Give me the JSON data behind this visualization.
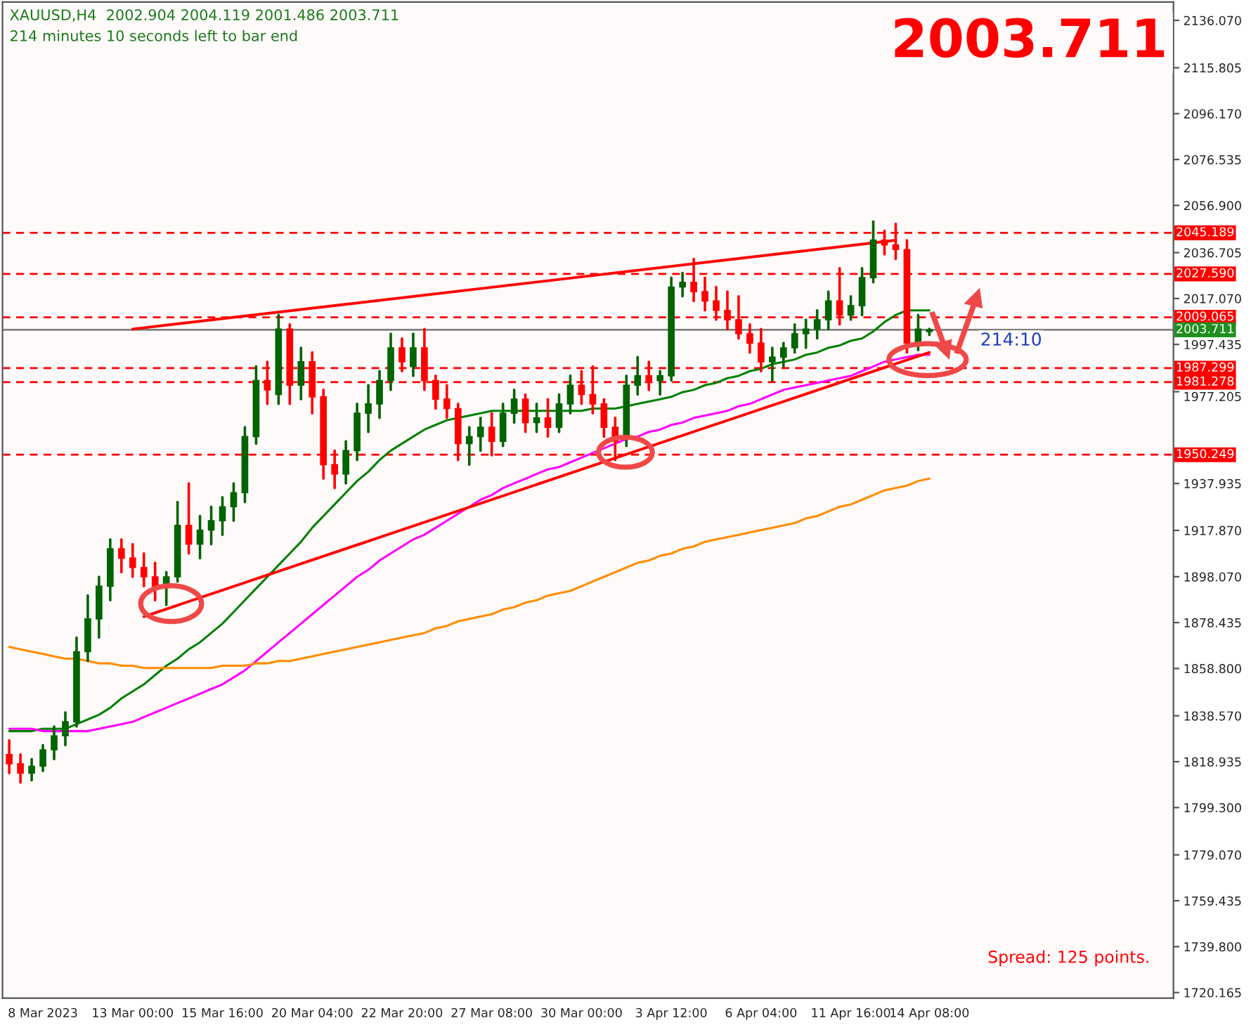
{
  "chart_data": {
    "type": "candlestick",
    "title": "XAUUSD,H4  2002.904 2004.119 2001.486 2003.711",
    "subtitle": "214 minutes 10 seconds left to bar end",
    "annotations": [
      "2003.711",
      "214:10",
      "Spread: 125 points."
    ],
    "categories": [
      null,
      null,
      null,
      "8 Mar 2023",
      null,
      null,
      null,
      null,
      null,
      null,
      null,
      "13 Mar 00:00",
      null,
      null,
      null,
      null,
      null,
      null,
      null,
      "15 Mar 16:00",
      null,
      null,
      null,
      null,
      null,
      null,
      null,
      "20 Mar 04:00",
      null,
      null,
      null,
      null,
      null,
      null,
      null,
      "22 Mar 20:00",
      null,
      null,
      null,
      null,
      null,
      null,
      null,
      "27 Mar 08:00",
      null,
      null,
      null,
      null,
      null,
      null,
      null,
      "30 Mar 00:00",
      null,
      null,
      null,
      null,
      null,
      null,
      null,
      "3 Apr 12:00",
      null,
      null,
      null,
      null,
      null,
      null,
      null,
      "6 Apr 04:00",
      null,
      null,
      null,
      null,
      null,
      null,
      null,
      "11 Apr 16:00",
      null,
      null,
      null,
      null,
      null,
      null,
      "14 Apr 08:00"
    ],
    "ohlc": [
      [
        1822,
        1828,
        1814,
        1818
      ],
      [
        1818,
        1822,
        1810,
        1814
      ],
      [
        1814,
        1820,
        1811,
        1817
      ],
      [
        1817,
        1826,
        1815,
        1824
      ],
      [
        1824,
        1834,
        1820,
        1830
      ],
      [
        1830,
        1840,
        1826,
        1836
      ],
      [
        1836,
        1872,
        1834,
        1866
      ],
      [
        1866,
        1890,
        1862,
        1880
      ],
      [
        1880,
        1898,
        1872,
        1894
      ],
      [
        1894,
        1914,
        1888,
        1910
      ],
      [
        1910,
        1914,
        1900,
        1906
      ],
      [
        1906,
        1912,
        1898,
        1902
      ],
      [
        1902,
        1908,
        1894,
        1898
      ],
      [
        1898,
        1904,
        1888,
        1894
      ],
      [
        1894,
        1900,
        1886,
        1898
      ],
      [
        1898,
        1930,
        1896,
        1920
      ],
      [
        1920,
        1938,
        1908,
        1912
      ],
      [
        1912,
        1924,
        1906,
        1918
      ],
      [
        1918,
        1928,
        1912,
        1922
      ],
      [
        1922,
        1932,
        1916,
        1928
      ],
      [
        1928,
        1938,
        1922,
        1934
      ],
      [
        1934,
        1962,
        1930,
        1958
      ],
      [
        1958,
        1988,
        1955,
        1982
      ],
      [
        1982,
        1990,
        1972,
        1978
      ],
      [
        1976,
        2010,
        1972,
        2004
      ],
      [
        2004,
        2006,
        1972,
        1980
      ],
      [
        1980,
        1996,
        1974,
        1990
      ],
      [
        1990,
        1994,
        1968,
        1975
      ],
      [
        1975,
        1978,
        1940,
        1946
      ],
      [
        1946,
        1952,
        1936,
        1942
      ],
      [
        1942,
        1956,
        1938,
        1952
      ],
      [
        1952,
        1972,
        1948,
        1968
      ],
      [
        1968,
        1980,
        1960,
        1972
      ],
      [
        1972,
        1986,
        1966,
        1982
      ],
      [
        1982,
        2002,
        1978,
        1996
      ],
      [
        1996,
        2000,
        1986,
        1990
      ],
      [
        1988,
        2002,
        1984,
        1996
      ],
      [
        1996,
        2004,
        1978,
        1982
      ],
      [
        1982,
        1984,
        1970,
        1974
      ],
      [
        1974,
        1980,
        1966,
        1970
      ],
      [
        1970,
        1972,
        1948,
        1955
      ],
      [
        1955,
        1962,
        1946,
        1958
      ],
      [
        1958,
        1966,
        1952,
        1962
      ],
      [
        1962,
        1968,
        1950,
        1956
      ],
      [
        1956,
        1972,
        1954,
        1968
      ],
      [
        1968,
        1978,
        1964,
        1974
      ],
      [
        1974,
        1976,
        1960,
        1964
      ],
      [
        1964,
        1972,
        1960,
        1966
      ],
      [
        1966,
        1974,
        1958,
        1962
      ],
      [
        1962,
        1976,
        1960,
        1972
      ],
      [
        1972,
        1984,
        1968,
        1980
      ],
      [
        1980,
        1986,
        1972,
        1976
      ],
      [
        1976,
        1988,
        1968,
        1972
      ],
      [
        1972,
        1974,
        1958,
        1962
      ],
      [
        1962,
        1966,
        1948,
        1956
      ],
      [
        1958,
        1984,
        1954,
        1980
      ],
      [
        1980,
        1992,
        1976,
        1984
      ],
      [
        1984,
        1990,
        1978,
        1982
      ],
      [
        1982,
        1986,
        1976,
        1984
      ],
      [
        1984,
        2026,
        1982,
        2022
      ],
      [
        2022,
        2028,
        2018,
        2024
      ],
      [
        2024,
        2034,
        2016,
        2020
      ],
      [
        2020,
        2026,
        2012,
        2016
      ],
      [
        2016,
        2022,
        2008,
        2012
      ],
      [
        2012,
        2020,
        2004,
        2008
      ],
      [
        2008,
        2018,
        2000,
        2002
      ],
      [
        2002,
        2006,
        1994,
        1998
      ],
      [
        1998,
        2004,
        1986,
        1990
      ],
      [
        1990,
        1996,
        1982,
        1992
      ],
      [
        1992,
        1998,
        1988,
        1996
      ],
      [
        1996,
        2006,
        1994,
        2002
      ],
      [
        2002,
        2008,
        1996,
        2004
      ],
      [
        2004,
        2012,
        2000,
        2008
      ],
      [
        2008,
        2020,
        2004,
        2016
      ],
      [
        2016,
        2030,
        2006,
        2010
      ],
      [
        2010,
        2018,
        2008,
        2014
      ],
      [
        2014,
        2030,
        2010,
        2026
      ],
      [
        2026,
        2050,
        2024,
        2042
      ],
      [
        2042,
        2046,
        2036,
        2040
      ],
      [
        2040,
        2049,
        2034,
        2038
      ],
      [
        2038,
        2042,
        1994,
        1998
      ],
      [
        1998,
        2010,
        1995,
        2004
      ],
      [
        2002.904,
        2004.119,
        2001.486,
        2003.711
      ]
    ],
    "series": [
      {
        "type": "line",
        "color": "#008000",
        "values": [
          1832,
          1832,
          1832,
          1833,
          1833,
          1833,
          1835,
          1837,
          1839,
          1842,
          1846,
          1849,
          1852,
          1856,
          1860,
          1863,
          1867,
          1870,
          1874,
          1878,
          1883,
          1888,
          1893,
          1898,
          1903,
          1908,
          1913,
          1919,
          1924,
          1929,
          1934,
          1939,
          1943,
          1948,
          1952,
          1955,
          1958,
          1961,
          1963,
          1965,
          1966,
          1967,
          1968,
          1969,
          1969,
          1969,
          1969,
          1969,
          1969,
          1969,
          1969,
          1969,
          1970,
          1970,
          1970,
          1971,
          1972,
          1973,
          1974,
          1975,
          1977,
          1978,
          1980,
          1981,
          1983,
          1984,
          1986,
          1987,
          1989,
          1990,
          1991,
          1993,
          1994,
          1996,
          1997,
          1999,
          2000,
          2003,
          2007,
          2010,
          2012,
          2012,
          2012
        ]
      },
      {
        "type": "line",
        "color": "#ff00ff",
        "values": [
          1833,
          1833,
          1833,
          1832,
          1832,
          1832,
          1832,
          1832,
          1833,
          1834,
          1835,
          1836,
          1838,
          1840,
          1842,
          1844,
          1846,
          1848,
          1850,
          1852,
          1855,
          1858,
          1862,
          1866,
          1870,
          1874,
          1878,
          1882,
          1886,
          1890,
          1894,
          1898,
          1901,
          1905,
          1908,
          1911,
          1914,
          1916,
          1919,
          1922,
          1925,
          1928,
          1931,
          1933,
          1936,
          1938,
          1940,
          1942,
          1944,
          1945,
          1947,
          1949,
          1951,
          1953,
          1955,
          1957,
          1958,
          1960,
          1961,
          1963,
          1964,
          1966,
          1967,
          1968,
          1969,
          1971,
          1972,
          1974,
          1976,
          1978,
          1979,
          1980,
          1981,
          1982,
          1983,
          1984,
          1986,
          1988,
          1990,
          1991,
          1992,
          1993,
          1993
        ]
      },
      {
        "type": "line",
        "color": "#ff8c00",
        "values": [
          1868,
          1867,
          1866,
          1865,
          1864,
          1863,
          1863,
          1862,
          1861,
          1861,
          1860,
          1860,
          1859,
          1859,
          1859,
          1859,
          1859,
          1859,
          1859,
          1860,
          1860,
          1860,
          1861,
          1861,
          1862,
          1862,
          1863,
          1864,
          1865,
          1866,
          1867,
          1868,
          1869,
          1870,
          1871,
          1872,
          1873,
          1874,
          1876,
          1877,
          1879,
          1880,
          1881,
          1882,
          1884,
          1885,
          1887,
          1888,
          1890,
          1891,
          1892,
          1894,
          1896,
          1898,
          1900,
          1902,
          1904,
          1905,
          1907,
          1908,
          1910,
          1911,
          1913,
          1914,
          1915,
          1916,
          1917,
          1918,
          1919,
          1920,
          1921,
          1923,
          1924,
          1926,
          1928,
          1929,
          1931,
          1933,
          1935,
          1936,
          1937,
          1939,
          1940
        ]
      },
      {
        "type": "line",
        "color": "#ff0000",
        "values": [
          null,
          null,
          null,
          null,
          null,
          null,
          null,
          null,
          null,
          null,
          null,
          2004,
          null,
          null,
          null,
          null,
          null,
          null,
          null,
          null,
          null,
          null,
          null,
          null,
          null,
          null,
          null,
          null,
          null,
          null,
          null,
          null,
          null,
          null,
          null,
          null,
          null,
          null,
          null,
          null,
          null,
          null,
          null,
          null,
          null,
          null,
          null,
          null,
          null,
          null,
          null,
          null,
          null,
          null,
          null,
          null,
          null,
          null,
          null,
          null,
          null,
          null,
          null,
          null,
          null,
          null,
          null,
          null,
          null,
          null,
          null,
          null,
          null,
          null,
          null,
          null,
          null,
          null,
          null,
          2042,
          null,
          null,
          null
        ]
      },
      {
        "type": "line",
        "color": "#ff0000",
        "values": [
          null,
          null,
          null,
          null,
          null,
          null,
          null,
          null,
          null,
          null,
          null,
          null,
          1881,
          null,
          null,
          null,
          null,
          null,
          null,
          null,
          null,
          null,
          null,
          null,
          null,
          null,
          null,
          null,
          null,
          null,
          null,
          null,
          null,
          null,
          null,
          null,
          null,
          null,
          null,
          null,
          null,
          null,
          null,
          null,
          null,
          null,
          null,
          null,
          null,
          null,
          null,
          null,
          null,
          null,
          null,
          null,
          null,
          null,
          null,
          null,
          null,
          null,
          null,
          null,
          null,
          null,
          null,
          null,
          null,
          null,
          null,
          null,
          null,
          null,
          null,
          null,
          null,
          null,
          null,
          null,
          null,
          null,
          1994
        ]
      }
    ],
    "ref_lines": [
      {
        "axis": "y",
        "value": 2045.189,
        "label": "2045.189",
        "color": "#ff0000",
        "line_style": "dashed"
      },
      {
        "axis": "y",
        "value": 2027.59,
        "label": "2027.590",
        "color": "#ff0000",
        "line_style": "dashed"
      },
      {
        "axis": "y",
        "value": 2009.065,
        "label": "2009.065",
        "color": "#ff0000",
        "line_style": "dashed"
      },
      {
        "axis": "y",
        "value": 2003.711,
        "label": "2003.711",
        "color": "#808080",
        "line_style": "solid"
      },
      {
        "axis": "y",
        "value": 1987.299,
        "label": "1987.299",
        "color": "#ff0000",
        "line_style": "dashed"
      },
      {
        "axis": "y",
        "value": 1981.278,
        "label": "1981.278",
        "color": "#ff0000",
        "line_style": "dashed"
      },
      {
        "axis": "y",
        "value": 1950.249,
        "label": "1950.249",
        "color": "#ff0000",
        "line_style": "dashed"
      }
    ],
    "ylim": [
      1717.8,
      2143.9
    ],
    "yticks": [
      {
        "value": 2136.07,
        "label": "2136.070"
      },
      {
        "value": 2115.805,
        "label": "2115.805"
      },
      {
        "value": 2096.17,
        "label": "2096.170"
      },
      {
        "value": 2076.535,
        "label": "2076.535"
      },
      {
        "value": 2056.9,
        "label": "2056.900"
      },
      {
        "value": 2036.705,
        "label": "2036.705"
      },
      {
        "value": 2017.07,
        "label": "2017.070"
      },
      {
        "value": 1997.435,
        "label": "1997.435"
      },
      {
        "value": 1977.205,
        "label": "1977.205"
      },
      {
        "value": 1937.935,
        "label": "1937.935"
      },
      {
        "value": 1917.87,
        "label": "1917.870"
      },
      {
        "value": 1898.07,
        "label": "1898.070"
      },
      {
        "value": 1878.435,
        "label": "1878.435"
      },
      {
        "value": 1858.8,
        "label": "1858.800"
      },
      {
        "value": 1838.57,
        "label": "1838.570"
      },
      {
        "value": 1818.935,
        "label": "1818.935"
      },
      {
        "value": 1799.3,
        "label": "1799.300"
      },
      {
        "value": 1779.07,
        "label": "1779.070"
      },
      {
        "value": 1759.435,
        "label": "1759.435"
      },
      {
        "value": 1739.8,
        "label": "1739.800"
      },
      {
        "value": 1720.165,
        "label": "1720.165"
      }
    ],
    "grid": false,
    "legend": false
  }
}
